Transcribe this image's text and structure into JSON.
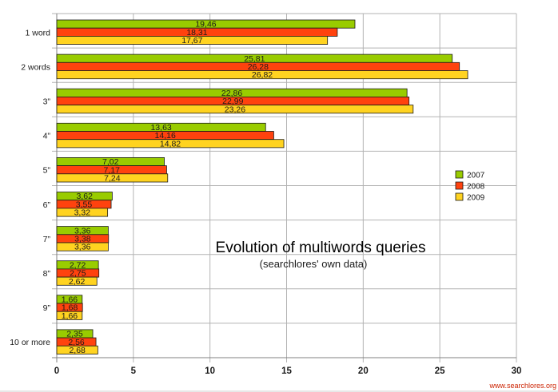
{
  "chart_data": {
    "type": "bar",
    "orientation": "horizontal",
    "title": "Evolution of multiwords queries",
    "subtitle": "(searchlores' own data)",
    "categories": [
      "1 word",
      "2 words",
      "3”",
      "4”",
      "5”",
      "6”",
      "7”",
      "8”",
      "9”",
      "10 or more"
    ],
    "series": [
      {
        "name": "2007",
        "color": "#99cc00",
        "values": [
          19.46,
          25.81,
          22.86,
          13.63,
          7.02,
          3.62,
          3.36,
          2.72,
          1.66,
          2.35
        ],
        "labels": [
          "19,46",
          "25,81",
          "22,86",
          "13,63",
          "7,02",
          "3,62",
          "3,36",
          "2,72",
          "1,66",
          "2,35"
        ]
      },
      {
        "name": "2008",
        "color": "#ff420e",
        "values": [
          18.31,
          26.28,
          22.99,
          14.16,
          7.17,
          3.55,
          3.38,
          2.75,
          1.68,
          2.56
        ],
        "labels": [
          "18,31",
          "26,28",
          "22,99",
          "14,16",
          "7,17",
          "3,55",
          "3,38",
          "2,75",
          "1,68",
          "2,56"
        ]
      },
      {
        "name": "2009",
        "color": "#ffd320",
        "values": [
          17.67,
          26.82,
          23.26,
          14.82,
          7.24,
          3.32,
          3.36,
          2.62,
          1.66,
          2.68
        ],
        "labels": [
          "17,67",
          "26,82",
          "23,26",
          "14,82",
          "7,24",
          "3,32",
          "3,36",
          "2,62",
          "1,66",
          "2,68"
        ]
      }
    ],
    "xlim": [
      0,
      30
    ],
    "xticks": [
      0,
      5,
      10,
      15,
      20,
      25,
      30
    ],
    "xtick_labels": [
      "0",
      "5",
      "10",
      "15",
      "20",
      "25",
      "30"
    ],
    "grid": true,
    "legend_position": "right"
  },
  "watermark": "www.searchlores.org"
}
